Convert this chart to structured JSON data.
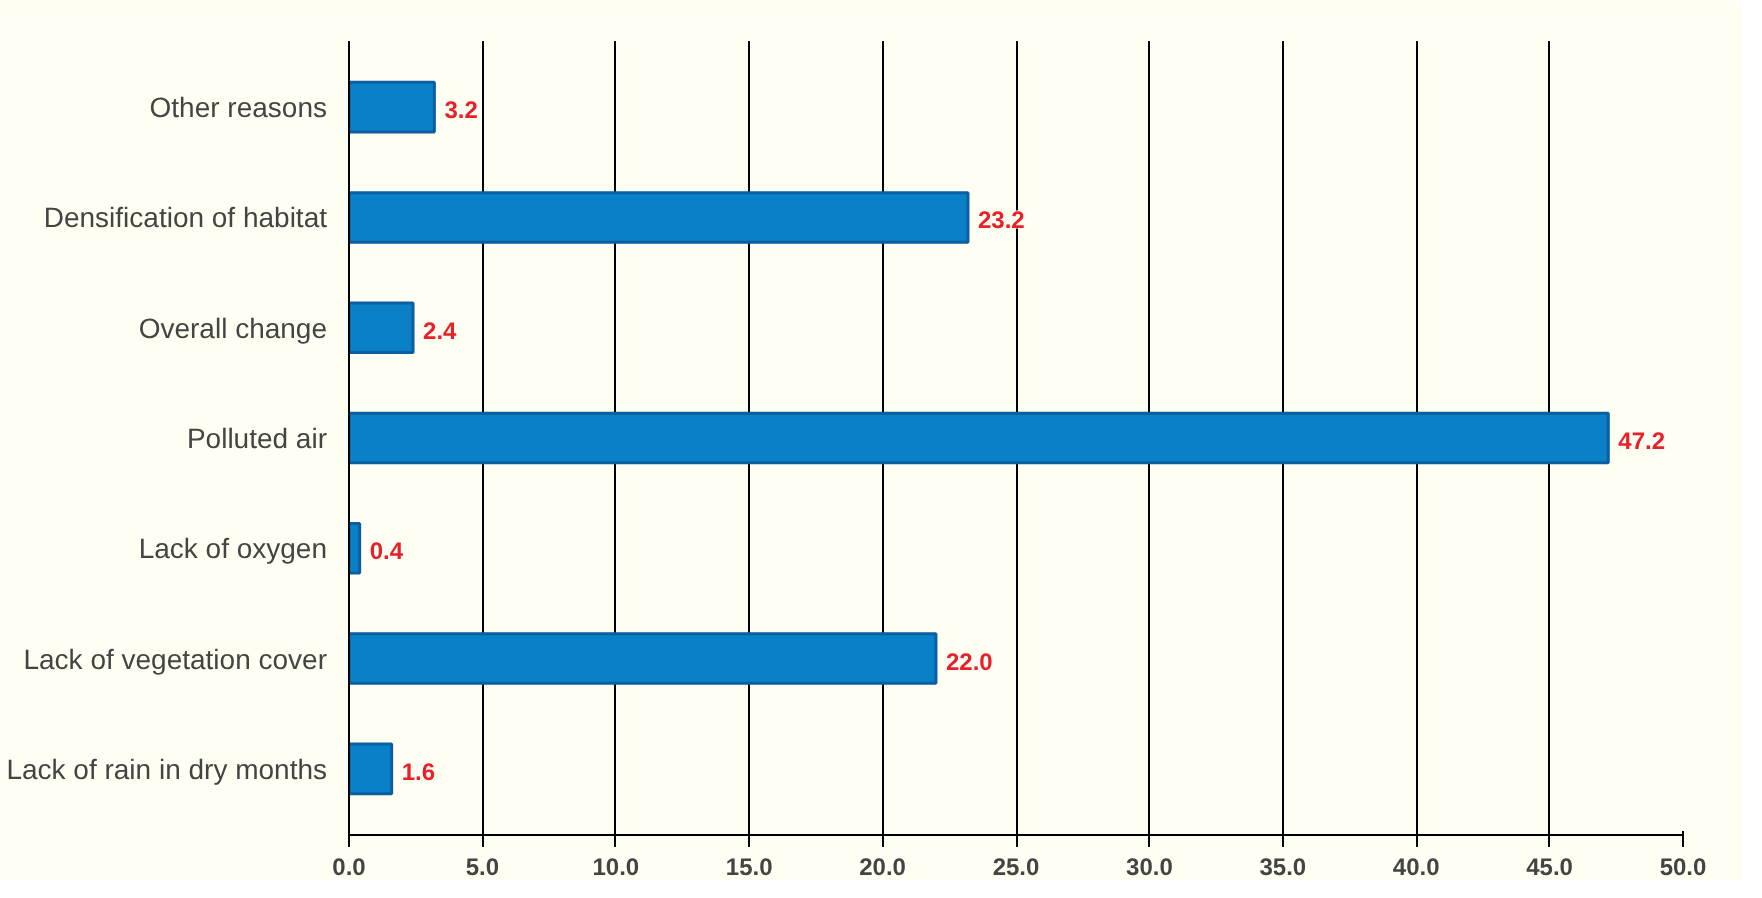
{
  "chart_data": {
    "type": "bar",
    "orientation": "horizontal",
    "categories": [
      "Other reasons",
      "Densification of habitat",
      "Overall change",
      "Polluted air",
      "Lack of oxygen",
      "Lack of vegetation cover",
      "Lack of rain in dry months"
    ],
    "values": [
      3.2,
      23.2,
      2.4,
      47.2,
      0.4,
      22.0,
      1.6
    ],
    "value_labels": [
      "3.2",
      "23.2",
      "2.4",
      "47.2",
      "0.4",
      "22.0",
      "1.6"
    ],
    "color": "#0a80c8",
    "xlim": [
      0,
      50
    ],
    "xticks": [
      {
        "value": 0,
        "label": "0.0"
      },
      {
        "value": 5,
        "label": "5.0"
      },
      {
        "value": 10,
        "label": "10.0"
      },
      {
        "value": 15,
        "label": "15.0"
      },
      {
        "value": 20,
        "label": "20.0"
      },
      {
        "value": 25,
        "label": "25.0"
      },
      {
        "value": 30,
        "label": "30.0"
      },
      {
        "value": 35,
        "label": "35.0"
      },
      {
        "value": 40,
        "label": "40.0"
      },
      {
        "value": 45,
        "label": "45.0"
      },
      {
        "value": 50,
        "label": "50.0"
      }
    ],
    "grid": "x"
  }
}
